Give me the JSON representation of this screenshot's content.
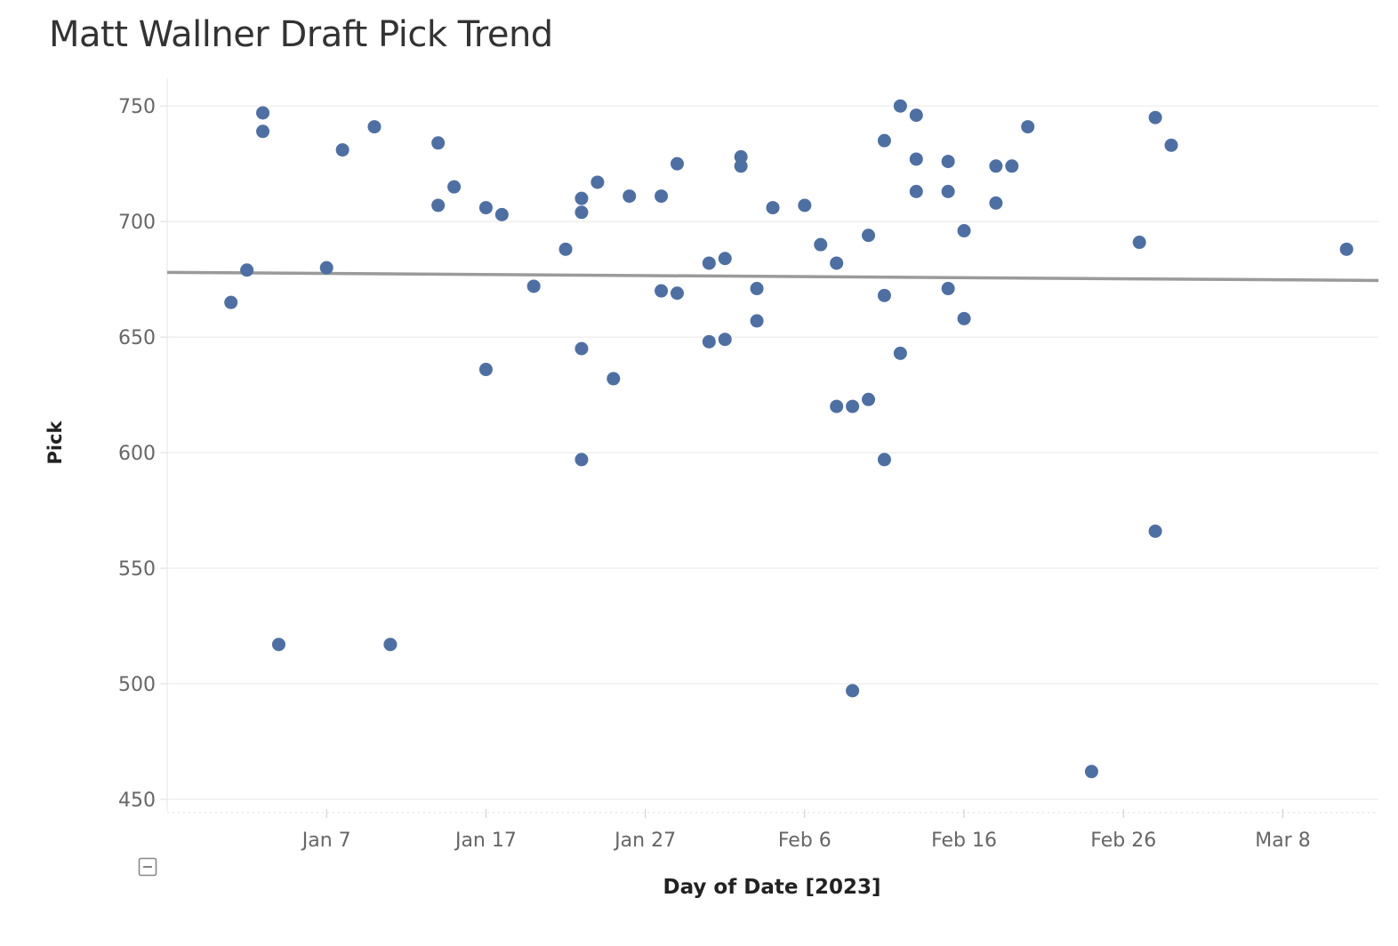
{
  "title": "Matt Wallner Draft Pick Trend",
  "colors": {
    "points": "#4e6fa3",
    "trend": "#9a9a9a",
    "grid": "#ececec",
    "text": "#666666"
  },
  "icons": {
    "collapse": "minus-box-icon"
  },
  "chart_data": {
    "type": "scatter",
    "title": "Matt Wallner Draft Pick Trend",
    "xlabel": "Day of Date [2023]",
    "ylabel": "Pick",
    "grid": "horizontal",
    "x_ticks": [
      "Jan 7",
      "Jan 17",
      "Jan 27",
      "Feb 6",
      "Feb 16",
      "Feb 26",
      "Mar 8"
    ],
    "y_ticks": [
      450,
      500,
      550,
      600,
      650,
      700,
      750
    ],
    "xlim": [
      "2022-12-28",
      "2023-03-14"
    ],
    "ylim": [
      445,
      762
    ],
    "trend_line": {
      "start": [
        "2022-12-28",
        678
      ],
      "end": [
        "2023-03-14",
        674.5
      ]
    },
    "points": [
      {
        "x": "2023-01-01",
        "y": 665
      },
      {
        "x": "2023-01-02",
        "y": 679
      },
      {
        "x": "2023-01-03",
        "y": 747
      },
      {
        "x": "2023-01-03",
        "y": 739
      },
      {
        "x": "2023-01-04",
        "y": 517
      },
      {
        "x": "2023-01-07",
        "y": 680
      },
      {
        "x": "2023-01-08",
        "y": 731
      },
      {
        "x": "2023-01-10",
        "y": 741
      },
      {
        "x": "2023-01-11",
        "y": 517
      },
      {
        "x": "2023-01-14",
        "y": 734
      },
      {
        "x": "2023-01-14",
        "y": 707
      },
      {
        "x": "2023-01-15",
        "y": 715
      },
      {
        "x": "2023-01-17",
        "y": 706
      },
      {
        "x": "2023-01-17",
        "y": 636
      },
      {
        "x": "2023-01-18",
        "y": 703
      },
      {
        "x": "2023-01-20",
        "y": 672
      },
      {
        "x": "2023-01-22",
        "y": 688
      },
      {
        "x": "2023-01-23",
        "y": 710
      },
      {
        "x": "2023-01-23",
        "y": 704
      },
      {
        "x": "2023-01-23",
        "y": 645
      },
      {
        "x": "2023-01-23",
        "y": 597
      },
      {
        "x": "2023-01-24",
        "y": 717
      },
      {
        "x": "2023-01-25",
        "y": 632
      },
      {
        "x": "2023-01-26",
        "y": 711
      },
      {
        "x": "2023-01-28",
        "y": 711
      },
      {
        "x": "2023-01-28",
        "y": 670
      },
      {
        "x": "2023-01-29",
        "y": 725
      },
      {
        "x": "2023-01-29",
        "y": 669
      },
      {
        "x": "2023-01-31",
        "y": 682
      },
      {
        "x": "2023-01-31",
        "y": 648
      },
      {
        "x": "2023-02-01",
        "y": 684
      },
      {
        "x": "2023-02-01",
        "y": 649
      },
      {
        "x": "2023-02-02",
        "y": 728
      },
      {
        "x": "2023-02-02",
        "y": 724
      },
      {
        "x": "2023-02-03",
        "y": 671
      },
      {
        "x": "2023-02-03",
        "y": 657
      },
      {
        "x": "2023-02-04",
        "y": 706
      },
      {
        "x": "2023-02-06",
        "y": 707
      },
      {
        "x": "2023-02-07",
        "y": 690
      },
      {
        "x": "2023-02-08",
        "y": 682
      },
      {
        "x": "2023-02-08",
        "y": 620
      },
      {
        "x": "2023-02-09",
        "y": 620
      },
      {
        "x": "2023-02-09",
        "y": 497
      },
      {
        "x": "2023-02-10",
        "y": 694
      },
      {
        "x": "2023-02-10",
        "y": 623
      },
      {
        "x": "2023-02-11",
        "y": 735
      },
      {
        "x": "2023-02-11",
        "y": 668
      },
      {
        "x": "2023-02-11",
        "y": 597
      },
      {
        "x": "2023-02-12",
        "y": 750
      },
      {
        "x": "2023-02-12",
        "y": 643
      },
      {
        "x": "2023-02-13",
        "y": 746
      },
      {
        "x": "2023-02-13",
        "y": 727
      },
      {
        "x": "2023-02-13",
        "y": 713
      },
      {
        "x": "2023-02-15",
        "y": 726
      },
      {
        "x": "2023-02-15",
        "y": 713
      },
      {
        "x": "2023-02-15",
        "y": 671
      },
      {
        "x": "2023-02-16",
        "y": 696
      },
      {
        "x": "2023-02-16",
        "y": 658
      },
      {
        "x": "2023-02-18",
        "y": 724
      },
      {
        "x": "2023-02-18",
        "y": 708
      },
      {
        "x": "2023-02-19",
        "y": 724
      },
      {
        "x": "2023-02-20",
        "y": 741
      },
      {
        "x": "2023-02-24",
        "y": 462
      },
      {
        "x": "2023-02-27",
        "y": 691
      },
      {
        "x": "2023-02-28",
        "y": 745
      },
      {
        "x": "2023-02-28",
        "y": 566
      },
      {
        "x": "2023-03-01",
        "y": 733
      },
      {
        "x": "2023-03-12",
        "y": 688
      }
    ]
  }
}
